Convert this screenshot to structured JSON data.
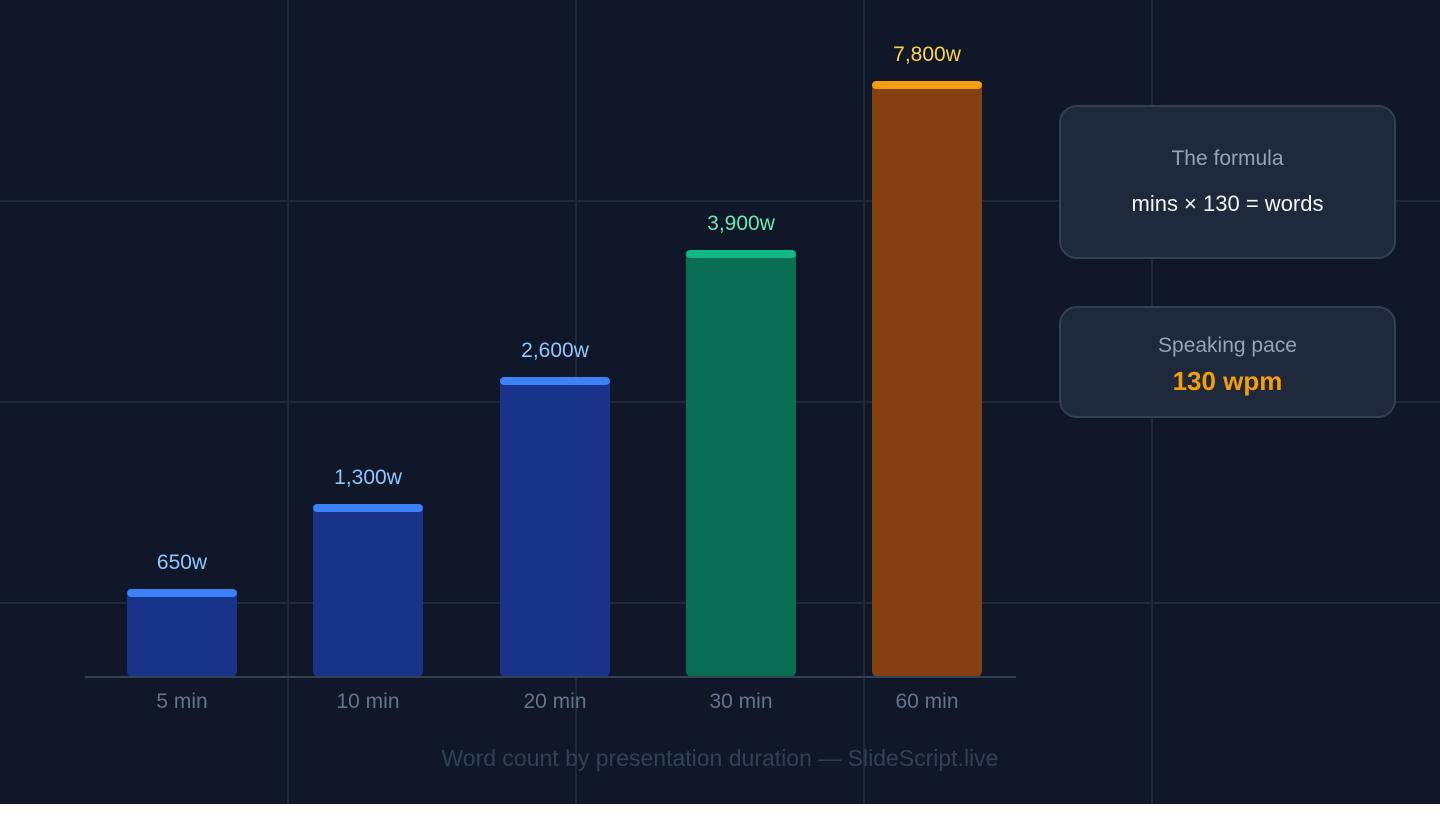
{
  "chart_data": {
    "type": "bar",
    "categories": [
      "5 min",
      "10 min",
      "20 min",
      "30 min",
      "60 min"
    ],
    "values": [
      650,
      1300,
      2600,
      3900,
      7800
    ],
    "value_labels": [
      "650w",
      "1,300w",
      "2,600w",
      "3,900w",
      "7,800w"
    ],
    "title": "",
    "caption": "Word count by presentation duration — SlideScript.live",
    "xlabel": "",
    "ylabel": "",
    "grid": true,
    "colors": {
      "fill": [
        "#1a338a",
        "#1a338a",
        "#1a338a",
        "#0a6e55",
        "#843f12"
      ],
      "cap": [
        "#3b82f6",
        "#3b82f6",
        "#3b82f6",
        "#10b981",
        "#f59e0b"
      ],
      "label": [
        "#93c5fd",
        "#93c5fd",
        "#93c5fd",
        "#6ee7b7",
        "#fcd34d"
      ]
    }
  },
  "cards": {
    "formula": {
      "title": "The formula",
      "value": "mins × 130 = words"
    },
    "pace": {
      "title": "Speaking pace",
      "value": "130 wpm"
    }
  }
}
